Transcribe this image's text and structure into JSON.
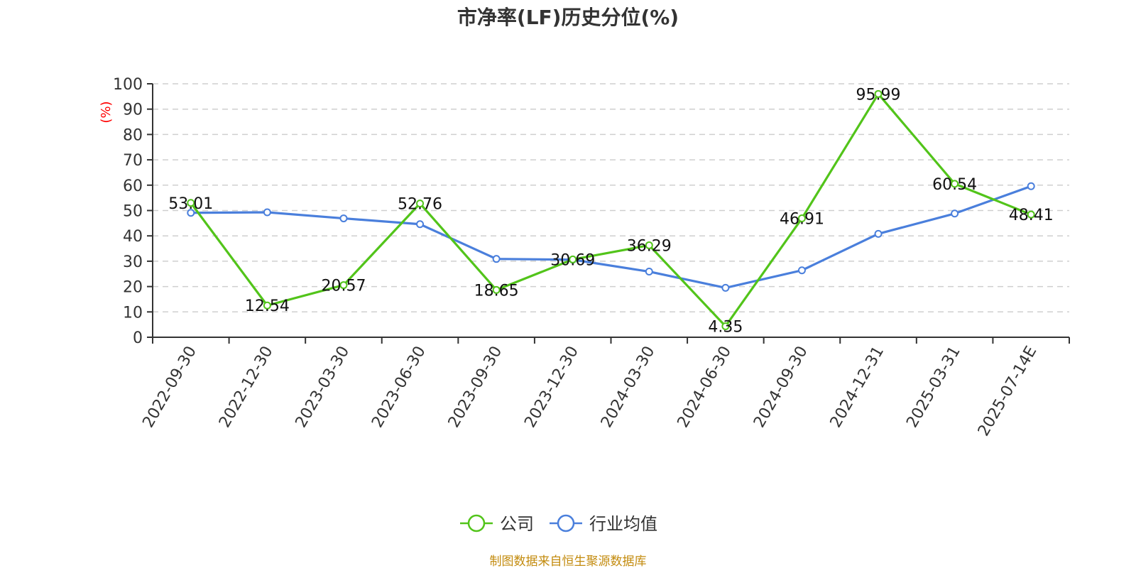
{
  "chart_data": {
    "type": "line",
    "title": "市净率(LF)历史分位(%)",
    "ylabel": "(%)",
    "categories": [
      "2022-09-30",
      "2022-12-30",
      "2023-03-30",
      "2023-06-30",
      "2023-09-30",
      "2023-12-30",
      "2024-03-30",
      "2024-06-30",
      "2024-09-30",
      "2024-12-31",
      "2025-03-31",
      "2025-07-14E"
    ],
    "y_ticks": [
      0,
      10,
      20,
      30,
      40,
      50,
      60,
      70,
      80,
      90,
      100
    ],
    "ylim": [
      0,
      100
    ],
    "grid": true,
    "legend_position": "bottom",
    "series": [
      {
        "name": "公司",
        "color": "#52c41a",
        "values": [
          53.01,
          12.54,
          20.57,
          52.76,
          18.65,
          30.69,
          36.29,
          4.35,
          46.91,
          95.99,
          60.54,
          48.41
        ],
        "data_labels": [
          "53.01",
          "12.54",
          "20.57",
          "52.76",
          "18.65",
          "30.69",
          "36.29",
          "4.35",
          "46.91",
          "95.99",
          "60.54",
          "48.41"
        ]
      },
      {
        "name": "行业均值",
        "color": "#4a7fdc",
        "values": [
          49.1,
          49.3,
          46.9,
          44.6,
          30.9,
          30.6,
          25.9,
          19.5,
          26.4,
          40.8,
          48.8,
          59.6
        ]
      }
    ]
  },
  "footer": {
    "source": "制图数据来自恒生聚源数据库"
  }
}
